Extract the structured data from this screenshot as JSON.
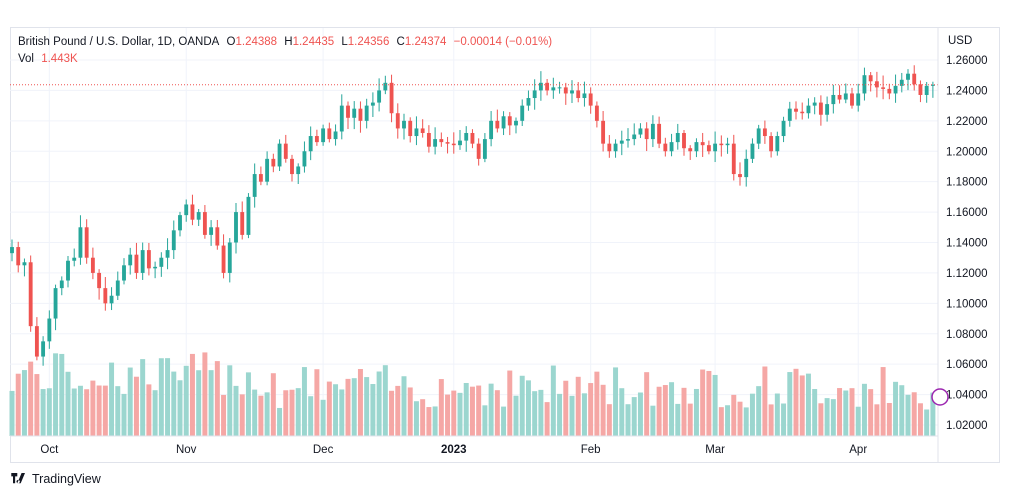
{
  "legend": {
    "symbol": "British Pound / U.S. Dollar, 1D, OANDA",
    "open_label": "O",
    "open": "1.24388",
    "high_label": "H",
    "high": "1.24435",
    "low_label": "L",
    "low": "1.24356",
    "close_label": "C",
    "close": "1.24374",
    "change": "−0.00014 (−0.01%)",
    "vol_label": "Vol",
    "vol": "1.443K"
  },
  "axis": {
    "currency": "USD"
  },
  "footer": {
    "brand": "TradingView"
  },
  "colors": {
    "up": "#26a69a",
    "down": "#ef5350",
    "vol_up": "#9bd6cf",
    "vol_down": "#f5a7a5",
    "price_line": "#ef5350"
  },
  "chart_data": {
    "type": "candlestick",
    "symbol": "GBPUSD",
    "interval": "1D",
    "ylim": [
      1.01,
      1.27
    ],
    "y_ticks": [
      "1.26000",
      "1.24000",
      "1.22000",
      "1.20000",
      "1.18000",
      "1.16000",
      "1.14000",
      "1.12000",
      "1.10000",
      "1.08000",
      "1.06000",
      "1.04000",
      "1.02000"
    ],
    "x_ticks": [
      {
        "label": "Oct",
        "index": 6,
        "bold": false
      },
      {
        "label": "Nov",
        "index": 28,
        "bold": false
      },
      {
        "label": "Dec",
        "index": 50,
        "bold": false
      },
      {
        "label": "2023",
        "index": 71,
        "bold": true
      },
      {
        "label": "Feb",
        "index": 93,
        "bold": false
      },
      {
        "label": "Mar",
        "index": 113,
        "bold": false
      },
      {
        "label": "Apr",
        "index": 136,
        "bold": false
      }
    ],
    "last_price": 1.24374,
    "closes": [
      1.137,
      1.125,
      1.127,
      1.085,
      1.065,
      1.075,
      1.09,
      1.11,
      1.115,
      1.128,
      1.13,
      1.15,
      1.13,
      1.12,
      1.11,
      1.1,
      1.105,
      1.115,
      1.125,
      1.132,
      1.12,
      1.135,
      1.123,
      1.124,
      1.13,
      1.135,
      1.148,
      1.158,
      1.165,
      1.155,
      1.16,
      1.145,
      1.15,
      1.138,
      1.12,
      1.14,
      1.16,
      1.145,
      1.17,
      1.185,
      1.18,
      1.195,
      1.19,
      1.205,
      1.195,
      1.185,
      1.19,
      1.2,
      1.21,
      1.206,
      1.215,
      1.208,
      1.213,
      1.23,
      1.222,
      1.228,
      1.22,
      1.23,
      1.232,
      1.24,
      1.245,
      1.225,
      1.215,
      1.22,
      1.21,
      1.215,
      1.212,
      1.203,
      1.208,
      1.206,
      1.205,
      1.204,
      1.207,
      1.212,
      1.205,
      1.195,
      1.208,
      1.22,
      1.215,
      1.223,
      1.217,
      1.22,
      1.23,
      1.235,
      1.24,
      1.245,
      1.24,
      1.242,
      1.242,
      1.238,
      1.24,
      1.235,
      1.238,
      1.23,
      1.22,
      1.205,
      1.2,
      1.205,
      1.207,
      1.208,
      1.211,
      1.215,
      1.208,
      1.218,
      1.205,
      1.2,
      1.206,
      1.212,
      1.202,
      1.2,
      1.206,
      1.204,
      1.2,
      1.205,
      1.204,
      1.205,
      1.185,
      1.183,
      1.195,
      1.205,
      1.215,
      1.21,
      1.2,
      1.21,
      1.22,
      1.228,
      1.226,
      1.225,
      1.23,
      1.232,
      1.224,
      1.231,
      1.237,
      1.234,
      1.238,
      1.23,
      1.238,
      1.25,
      1.246,
      1.242,
      1.241,
      1.238,
      1.243,
      1.247,
      1.251,
      1.244,
      1.237,
      1.243,
      1.2437
    ]
  }
}
